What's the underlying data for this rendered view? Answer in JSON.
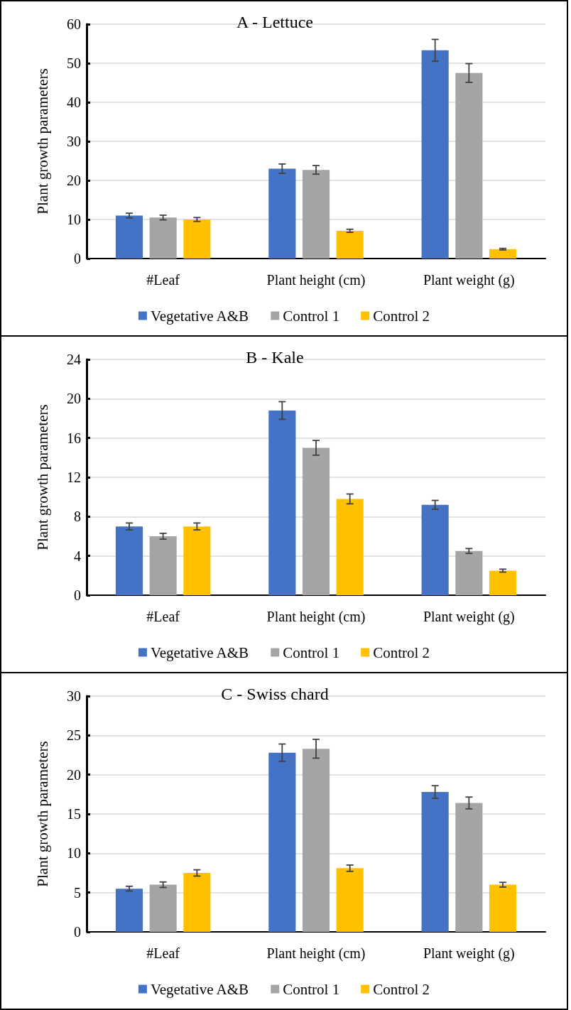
{
  "chart_data": [
    {
      "type": "bar",
      "title": "A - Lettuce",
      "ylabel": "Plant growth parameters",
      "categories": [
        "#Leaf",
        "Plant height (cm)",
        "Plant weight (g)"
      ],
      "ylim": [
        0,
        60
      ],
      "yticks": [
        0,
        10,
        20,
        30,
        40,
        50,
        60
      ],
      "grid": "y",
      "legend": "bottom",
      "series": [
        {
          "name": "Vegetative A&B",
          "color": "#4472c4",
          "values": [
            11,
            23,
            53.3
          ],
          "errors": [
            0.6,
            1.2,
            2.8
          ]
        },
        {
          "name": "Control 1",
          "color": "#a5a5a5",
          "values": [
            10.5,
            22.7,
            47.5
          ],
          "errors": [
            0.6,
            1.1,
            2.4
          ]
        },
        {
          "name": "Control 2",
          "color": "#ffc000",
          "values": [
            10,
            7.1,
            2.4
          ],
          "errors": [
            0.5,
            0.4,
            0.2
          ]
        }
      ]
    },
    {
      "type": "bar",
      "title": "B - Kale",
      "ylabel": "Plant growth parameters",
      "categories": [
        "#Leaf",
        "Plant height (cm)",
        "Plant weight (g)"
      ],
      "ylim": [
        0,
        24
      ],
      "yticks": [
        0,
        4,
        8,
        12,
        16,
        20,
        24
      ],
      "grid": "y",
      "legend": "bottom",
      "series": [
        {
          "name": "Vegetative A&B",
          "color": "#4472c4",
          "values": [
            7,
            18.8,
            9.2
          ],
          "errors": [
            0.35,
            0.9,
            0.45
          ]
        },
        {
          "name": "Control 1",
          "color": "#a5a5a5",
          "values": [
            6,
            15,
            4.5
          ],
          "errors": [
            0.3,
            0.75,
            0.25
          ]
        },
        {
          "name": "Control 2",
          "color": "#ffc000",
          "values": [
            7,
            9.8,
            2.5
          ],
          "errors": [
            0.35,
            0.5,
            0.15
          ]
        }
      ]
    },
    {
      "type": "bar",
      "title": "C - Swiss chard",
      "ylabel": "Plant growth parameters",
      "categories": [
        "#Leaf",
        "Plant height (cm)",
        "Plant weight (g)"
      ],
      "ylim": [
        0,
        30
      ],
      "yticks": [
        0,
        5,
        10,
        15,
        20,
        25,
        30
      ],
      "grid": "y",
      "legend": "bottom",
      "series": [
        {
          "name": "Vegetative A&B",
          "color": "#4472c4",
          "values": [
            5.5,
            22.8,
            17.8
          ],
          "errors": [
            0.3,
            1.1,
            0.8
          ]
        },
        {
          "name": "Control 1",
          "color": "#a5a5a5",
          "values": [
            6,
            23.3,
            16.4
          ],
          "errors": [
            0.35,
            1.2,
            0.75
          ]
        },
        {
          "name": "Control 2",
          "color": "#ffc000",
          "values": [
            7.5,
            8.1,
            6
          ],
          "errors": [
            0.4,
            0.4,
            0.3
          ]
        }
      ]
    }
  ]
}
